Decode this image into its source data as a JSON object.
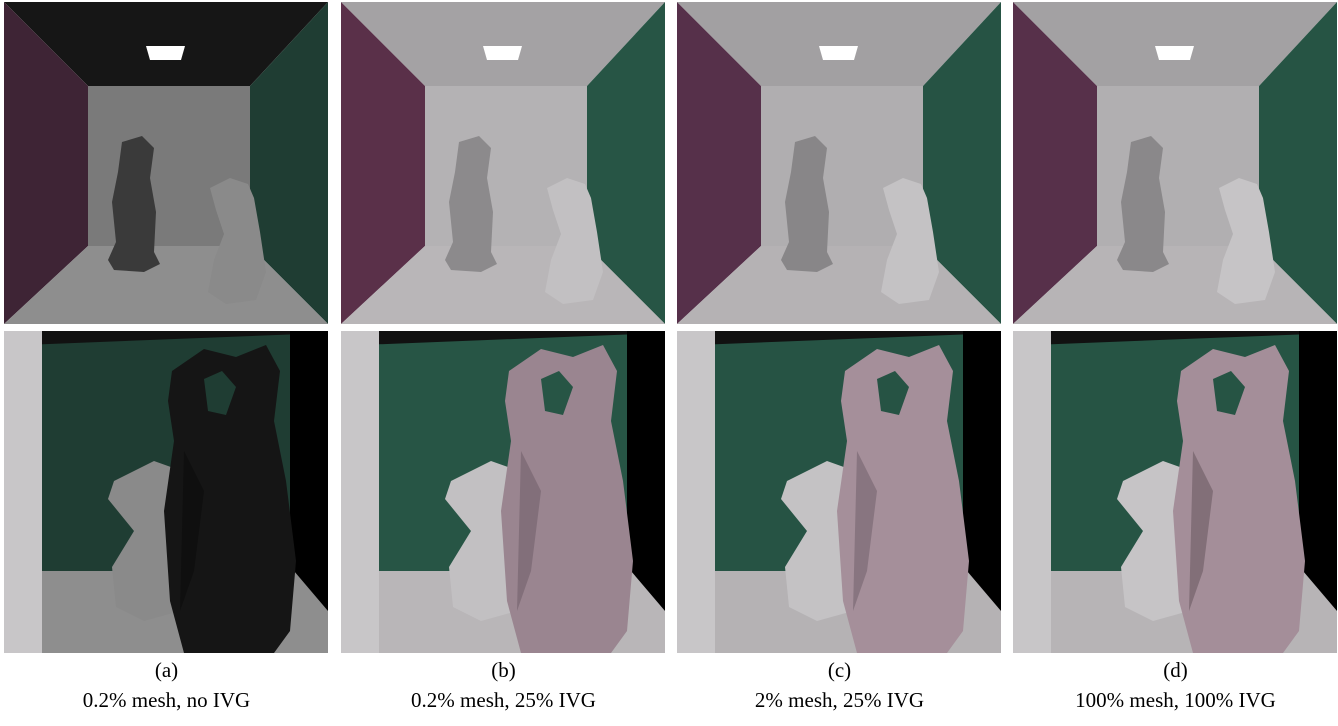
{
  "panels": [
    {
      "label": "(a)",
      "caption": "0.2% mesh, no IVG"
    },
    {
      "label": "(b)",
      "caption": "0.2% mesh, 25% IVG"
    },
    {
      "label": "(c)",
      "caption": "2% mesh, 25% IVG"
    },
    {
      "label": "(d)",
      "caption": "100% mesh, 100% IVG"
    }
  ]
}
